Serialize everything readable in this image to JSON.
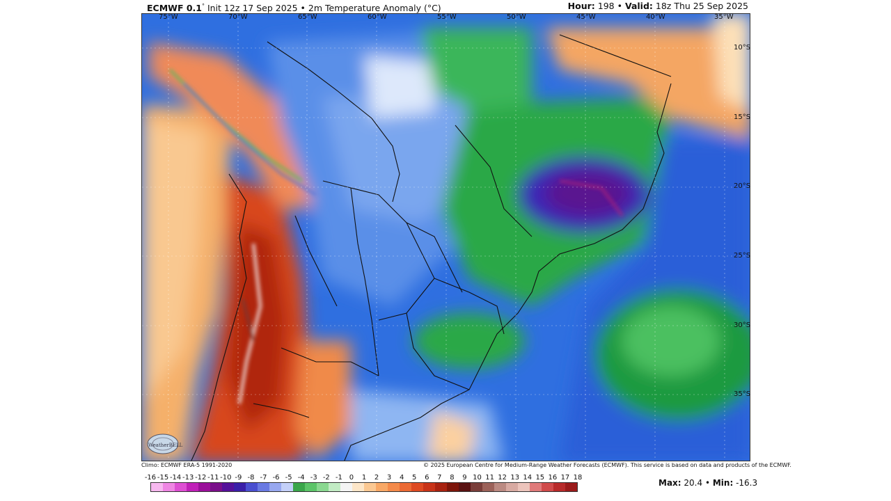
{
  "header": {
    "model": "ECMWF 0.1",
    "degree": "°",
    "init": " Init 12z 17 Sep 2025 • 2m Temperature Anomaly (°C)",
    "hour_label": "Hour:",
    "hour_value": " 198 • ",
    "valid_label": "Valid:",
    "valid_value": " 18z Thu 25 Sep 2025"
  },
  "longitude_labels": [
    "75°W",
    "70°W",
    "65°W",
    "60°W",
    "55°W",
    "50°W",
    "45°W",
    "40°W",
    "35°W"
  ],
  "latitude_labels": [
    "10°S",
    "15°S",
    "20°S",
    "25°S",
    "30°S",
    "35°S"
  ],
  "credits": {
    "climo": "Climo: ECMWF ERA-5 1991-2020",
    "copyright": "© 2025 European Centre for Medium-Range Weather Forecasts (ECMWF). This service is based on data and products of the ECMWF."
  },
  "logo_text": "WeatherBELL",
  "colorbar": {
    "labels": [
      "-16",
      "-15",
      "-14",
      "-13",
      "-12",
      "-11",
      "-10",
      "-9",
      "-8",
      "-7",
      "-6",
      "-5",
      "-4",
      "-3",
      "-2",
      "-1",
      "0",
      "1",
      "2",
      "3",
      "4",
      "5",
      "6",
      "7",
      "8",
      "9",
      "10",
      "11",
      "12",
      "13",
      "14",
      "15",
      "16",
      "17",
      "18"
    ],
    "colors": [
      "#f7b8ef",
      "#ef86e3",
      "#de4fd3",
      "#c020b8",
      "#9a0f9a",
      "#7a0f8a",
      "#55119a",
      "#3a1fa8",
      "#4a4fd0",
      "#6a7ae3",
      "#98a8f0",
      "#c4d0f8",
      "#3aa64a",
      "#5cc468",
      "#8ad890",
      "#c2ecc4",
      "#f4f4f4",
      "#fde6c8",
      "#fbc892",
      "#f8a866",
      "#f48a4a",
      "#ec6a34",
      "#de4a22",
      "#c83318",
      "#a82210",
      "#7d150a",
      "#5a1212",
      "#7a3e3a",
      "#9c625a",
      "#bb8a82",
      "#d8aaa2",
      "#ecc4bc",
      "#e07a7a",
      "#d04a4a",
      "#b82a2a",
      "#9a1a1a"
    ]
  },
  "stats": {
    "max_label": "Max:",
    "max_value": " 20.4",
    "sep": " • ",
    "min_label": "Min:",
    "min_value": " -16.3"
  }
}
